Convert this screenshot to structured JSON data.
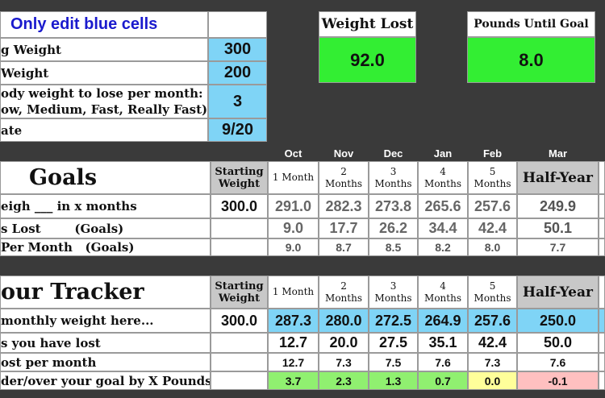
{
  "header": {
    "edit_note": "Only edit blue cells"
  },
  "inputs": {
    "starting_weight_label": "g Weight",
    "starting_weight_value": "300",
    "goal_weight_label": "Weight",
    "goal_weight_value": "200",
    "rate_label_line1": "ody weight to lose per month:",
    "rate_label_line2": "ow, Medium, Fast, Really Fast)",
    "rate_value": "3",
    "date_label": "ate",
    "date_value": "9/20"
  },
  "summary": {
    "weight_lost_label": "Weight Lost",
    "weight_lost_value": "92.0",
    "pounds_until_goal_label": "Pounds Until Goal",
    "pounds_until_goal_value": "8.0"
  },
  "months": [
    "Oct",
    "Nov",
    "Dec",
    "Jan",
    "Feb",
    "Mar"
  ],
  "goals": {
    "title": "Goals",
    "starting_header": "Starting Weight",
    "col_headers": [
      "1 Month",
      "2 Months",
      "3 Months",
      "4 Months",
      "5 Months",
      "Half-Year"
    ],
    "row_labels": [
      "eigh ___ in x months",
      "s Lost        (Goals)",
      "Per Month   (Goals)"
    ],
    "starting_value": "300.0",
    "weights": [
      "291.0",
      "282.3",
      "273.8",
      "265.6",
      "257.6",
      "249.9"
    ],
    "lost": [
      "9.0",
      "17.7",
      "26.2",
      "34.4",
      "42.4",
      "50.1"
    ],
    "per_month": [
      "9.0",
      "8.7",
      "8.5",
      "8.2",
      "8.0",
      "7.7"
    ]
  },
  "tracker": {
    "title": "our Tracker",
    "starting_header": "Starting Weight",
    "col_headers": [
      "1 Month",
      "2 Months",
      "3 Months",
      "4 Months",
      "5 Months",
      "Half-Year"
    ],
    "row_labels": [
      "monthly weight here...",
      "s you have lost",
      "ost per month",
      "der/over your goal by X Pounds"
    ],
    "starting_value": "300.0",
    "weights": [
      "287.3",
      "280.0",
      "272.5",
      "264.9",
      "257.6",
      "250.0"
    ],
    "lost": [
      "12.7",
      "20.0",
      "27.5",
      "35.1",
      "42.4",
      "50.0"
    ],
    "per_month": [
      "12.7",
      "7.3",
      "7.5",
      "7.6",
      "7.3",
      "7.6"
    ],
    "diff": [
      "3.7",
      "2.3",
      "1.3",
      "0.7",
      "0.0",
      "-0.1"
    ]
  },
  "colors": {
    "background": "#3a3a3a",
    "input_blue": "#7fd4f6",
    "summary_green": "#33ee33",
    "ahead_green": "#90f070",
    "on_track_yellow": "#ffff9a",
    "behind_pink": "#ffc0c0"
  }
}
